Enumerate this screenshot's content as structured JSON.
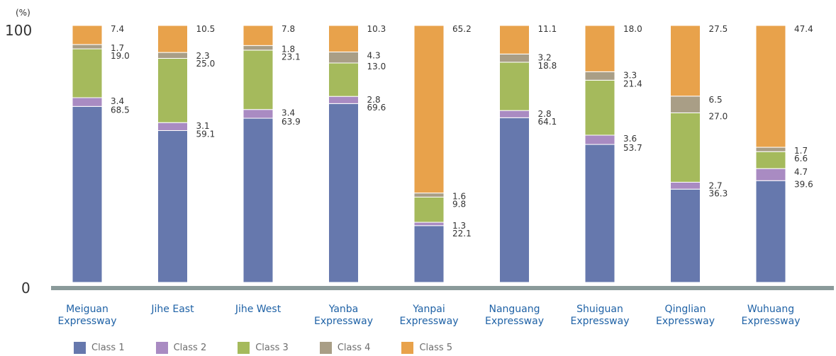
{
  "chart_data": {
    "type": "bar",
    "stacked": true,
    "unit_label": "(%)",
    "yticks": [
      "100",
      "0"
    ],
    "ylim": [
      0,
      100
    ],
    "categories": [
      [
        "Meiguan",
        "Expressway"
      ],
      [
        "Jihe East"
      ],
      [
        "Jihe West"
      ],
      [
        "Yanba",
        "Expressway"
      ],
      [
        "Yanpai",
        "Expressway"
      ],
      [
        "Nanguang",
        "Expressway"
      ],
      [
        "Shuiguan",
        "Expressway"
      ],
      [
        "Qinglian",
        "Expressway"
      ],
      [
        "Wuhuang",
        "Expressway"
      ]
    ],
    "series": [
      {
        "name": "Class 1",
        "color": "#6678ad",
        "values": [
          68.5,
          59.1,
          63.9,
          69.6,
          22.1,
          64.1,
          53.7,
          36.3,
          39.6
        ]
      },
      {
        "name": "Class 2",
        "color": "#a98bc2",
        "values": [
          3.4,
          3.1,
          3.4,
          2.8,
          1.3,
          2.8,
          3.6,
          2.7,
          4.7
        ]
      },
      {
        "name": "Class 3",
        "color": "#a5ba5c",
        "values": [
          19.0,
          25.0,
          23.1,
          13.0,
          9.8,
          18.8,
          21.4,
          27.0,
          6.6
        ]
      },
      {
        "name": "Class 4",
        "color": "#a99e86",
        "values": [
          1.7,
          2.3,
          1.8,
          4.3,
          1.6,
          3.2,
          3.3,
          6.5,
          1.7
        ]
      },
      {
        "name": "Class 5",
        "color": "#e8a24b",
        "values": [
          7.4,
          10.5,
          7.8,
          10.3,
          65.2,
          11.1,
          18.0,
          27.5,
          47.4
        ]
      }
    ],
    "legend_position": "bottom-left",
    "grid": false,
    "colors": {
      "axis": "#8a9a9a",
      "category_text": "#1f62a6",
      "label_text": "#333333"
    }
  }
}
